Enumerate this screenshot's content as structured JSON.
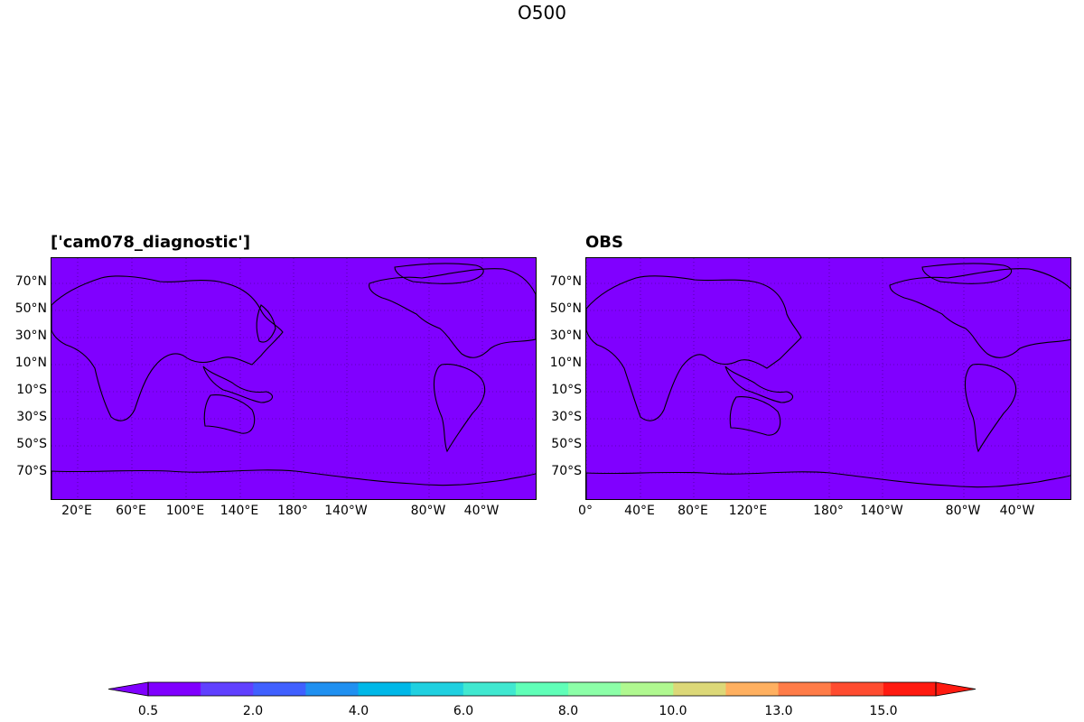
{
  "figure": {
    "title": "O500"
  },
  "panels": [
    {
      "title": "['cam078_diagnostic']",
      "fill_color": "#8000ff",
      "lat_labels": [
        "70°N",
        "50°N",
        "30°N",
        "10°N",
        "10°S",
        "30°S",
        "50°S",
        "70°S"
      ],
      "lon_labels": [
        "20°E",
        "60°E",
        "100°E",
        "140°E",
        "180°",
        "140°W",
        "80°W",
        "40°W"
      ]
    },
    {
      "title": "OBS",
      "fill_color": "#8000ff",
      "lat_labels": [
        "70°N",
        "50°N",
        "30°N",
        "10°N",
        "10°S",
        "30°S",
        "50°S",
        "70°S"
      ],
      "lon_labels": [
        "0°",
        "40°E",
        "80°E",
        "120°E",
        "180°",
        "140°W",
        "80°W",
        "40°W"
      ]
    }
  ],
  "colorbar": {
    "colors": [
      "#8000ff",
      "#6040ff",
      "#4060ff",
      "#2090f0",
      "#00b8e8",
      "#20d0e0",
      "#40e8d0",
      "#60ffb8",
      "#8cffa8",
      "#b0f890",
      "#dcd878",
      "#ffb060",
      "#ff7c48",
      "#ff4c30",
      "#ff1a10"
    ],
    "ticks": [
      "0.5",
      "2.0",
      "4.0",
      "6.0",
      "8.0",
      "10.0",
      "13.0",
      "15.0"
    ]
  }
}
